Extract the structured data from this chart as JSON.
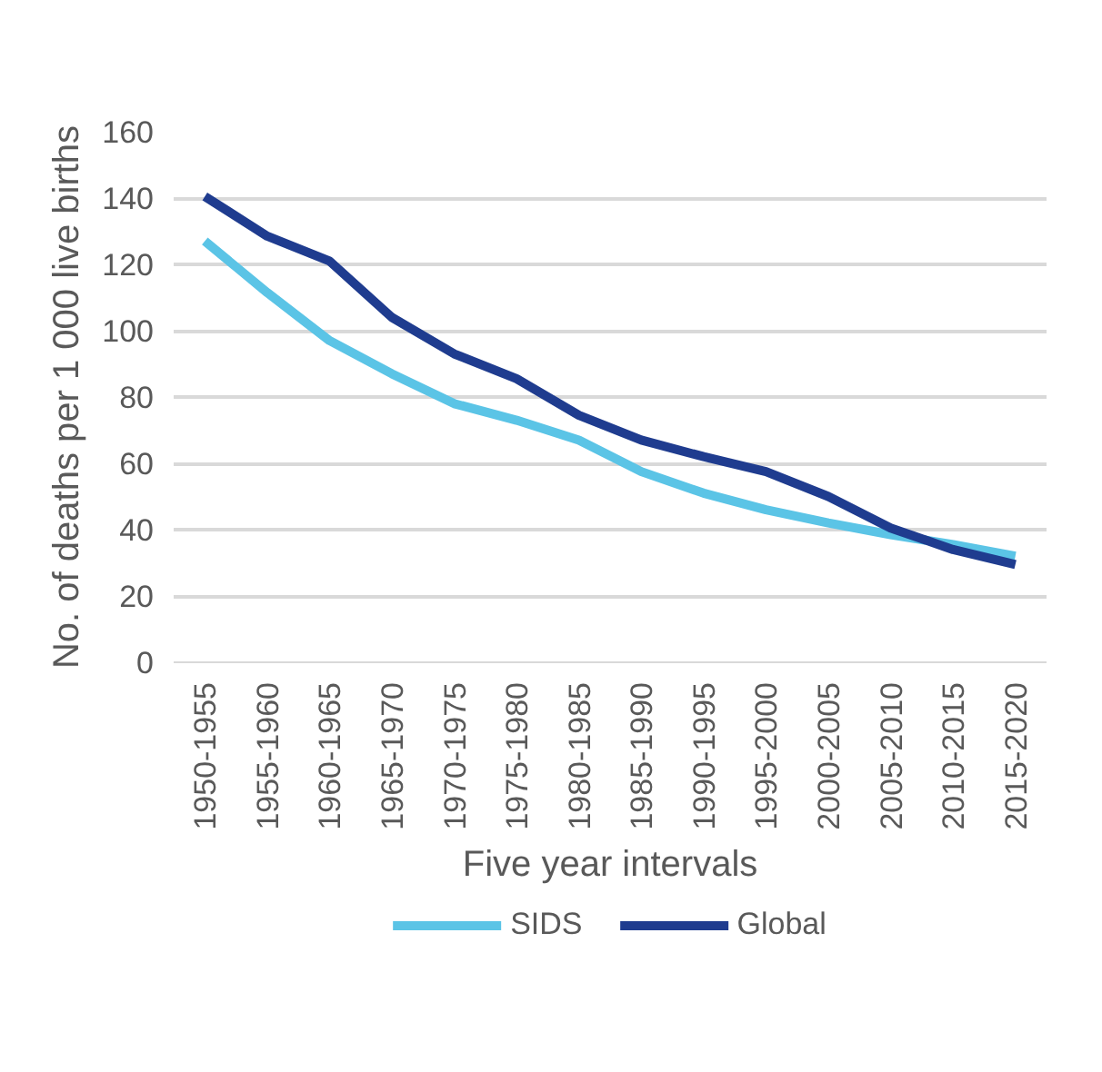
{
  "chart_data": {
    "type": "line",
    "xlabel": "Five year intervals",
    "ylabel": "No. of deaths per 1 000 live births",
    "categories": [
      "1950-1955",
      "1955-1960",
      "1960-1965",
      "1965-1970",
      "1970-1975",
      "1975-1980",
      "1980-1985",
      "1985-1990",
      "1990-1995",
      "1995-2000",
      "2000-2005",
      "2005-2010",
      "2010-2015",
      "2015-2020"
    ],
    "series": [
      {
        "name": "SIDS",
        "color": "#5bc4e6",
        "values": [
          127,
          111.5,
          97,
          87,
          78,
          73,
          67,
          57.5,
          51,
          46,
          42,
          38.5,
          35.5,
          32
        ]
      },
      {
        "name": "Global",
        "color": "#1f3c8f",
        "values": [
          140.5,
          128.5,
          121,
          104,
          93,
          85.5,
          74.5,
          67,
          62,
          57.5,
          50,
          40.5,
          34,
          29.5
        ]
      }
    ],
    "ylim": [
      0,
      160
    ],
    "yticks": [
      0,
      20,
      40,
      60,
      80,
      100,
      120,
      140,
      160
    ],
    "grid": "y",
    "legend": "bottom",
    "line_style": "solid",
    "marker": "none"
  }
}
